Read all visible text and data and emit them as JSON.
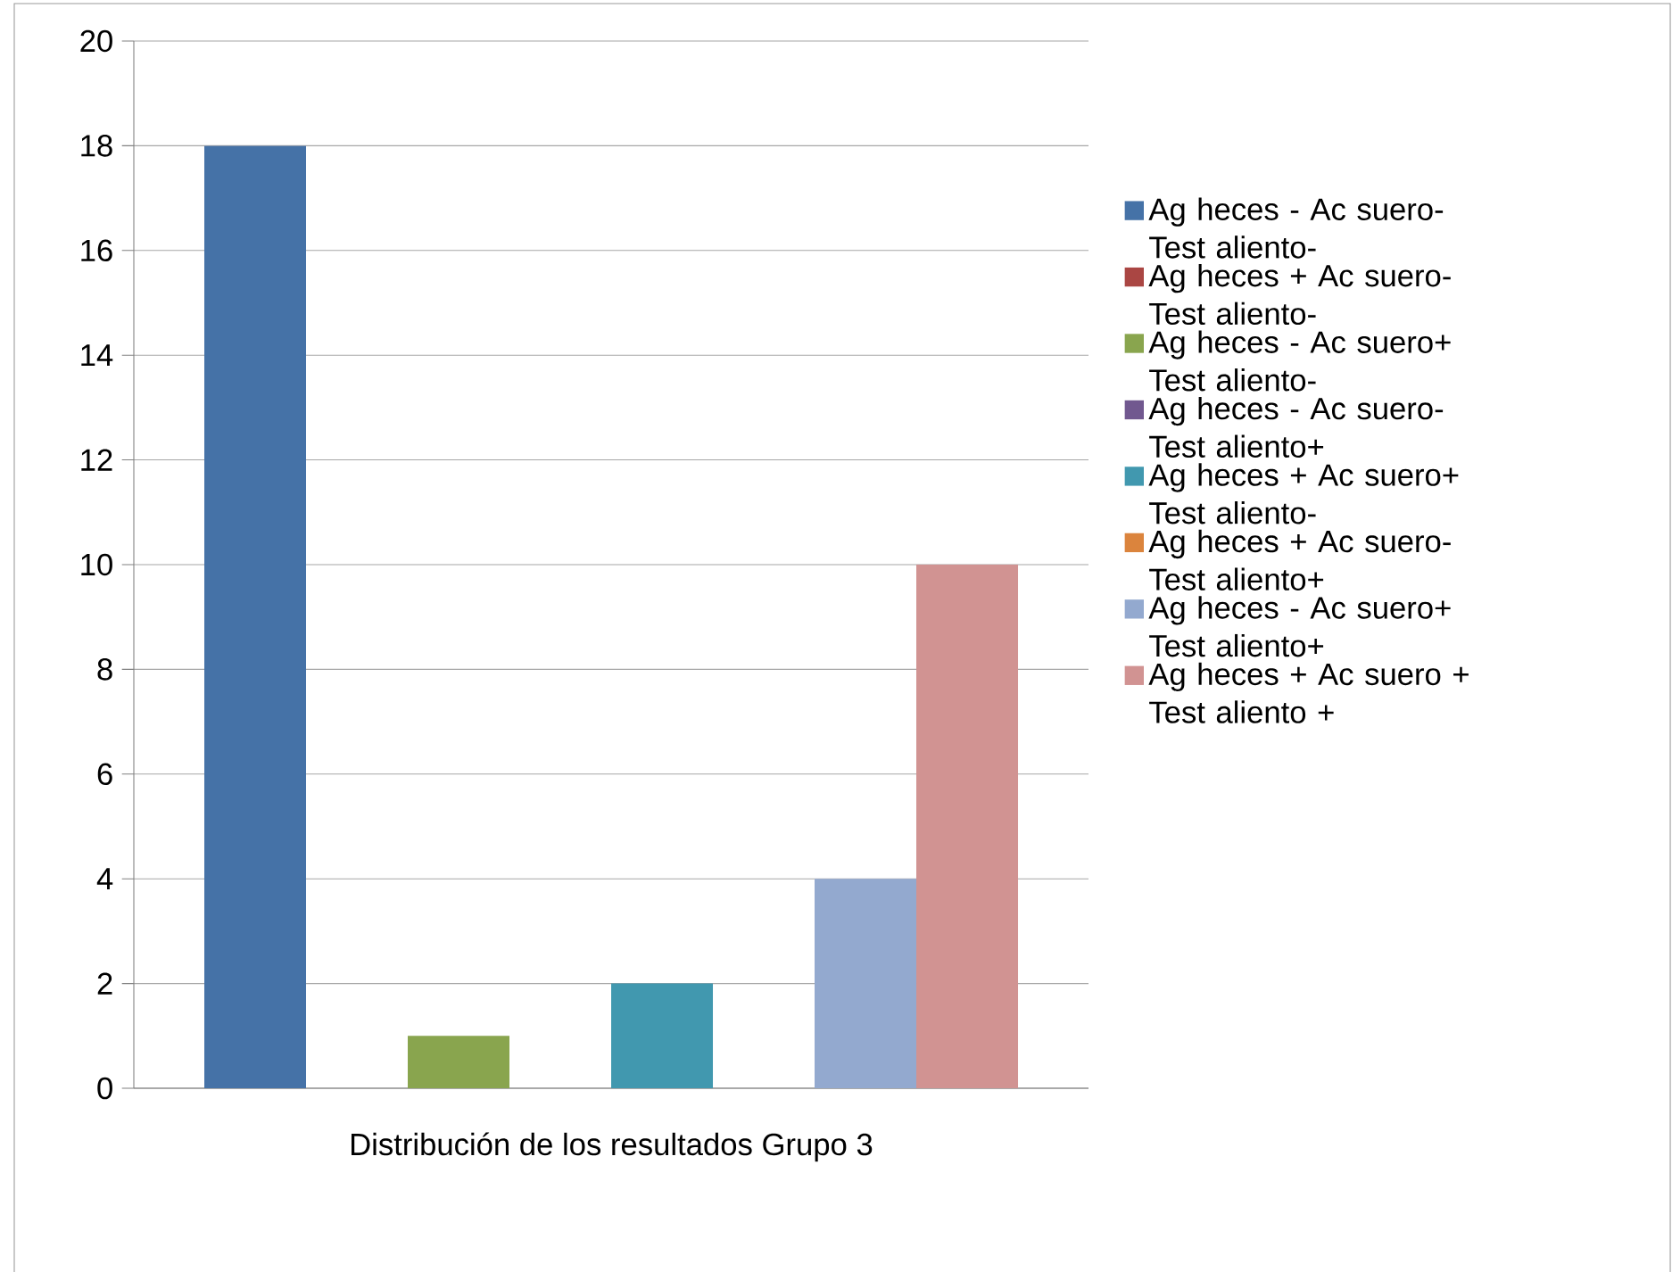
{
  "chart_data": {
    "type": "bar",
    "categories": [
      "Distribución de los resultados Grupo 3"
    ],
    "series": [
      {
        "name": "Ag heces - Ac suero- Test aliento-",
        "color": "#4572a7",
        "values": [
          18
        ]
      },
      {
        "name": "Ag heces + Ac suero- Test aliento-",
        "color": "#aa4643",
        "values": [
          0
        ]
      },
      {
        "name": "Ag heces - Ac suero+ Test aliento-",
        "color": "#89a54e",
        "values": [
          1
        ]
      },
      {
        "name": "Ag heces - Ac suero- Test aliento+",
        "color": "#71588f",
        "values": [
          0
        ]
      },
      {
        "name": "Ag heces + Ac suero+ Test aliento-",
        "color": "#4198af",
        "values": [
          2
        ]
      },
      {
        "name": "Ag heces + Ac suero- Test aliento+",
        "color": "#db843d",
        "values": [
          0
        ]
      },
      {
        "name": "Ag heces - Ac suero+ Test aliento+",
        "color": "#93a9cf",
        "values": [
          4
        ]
      },
      {
        "name": "Ag heces + Ac suero + Test aliento +",
        "color": "#d19392",
        "values": [
          10
        ]
      }
    ],
    "ylim": [
      0,
      20
    ],
    "yticks": [
      0,
      2,
      4,
      6,
      8,
      10,
      12,
      14,
      16,
      18,
      20
    ],
    "grid": "y",
    "legend": "right"
  }
}
